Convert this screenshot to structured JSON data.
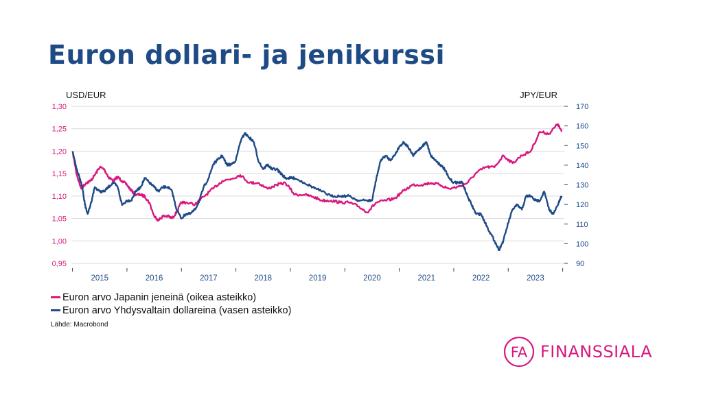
{
  "slide": {
    "title": "Euron dollari- ja jenikurssi"
  },
  "colors": {
    "title": "#1e4a86",
    "jpy": "#d8177f",
    "usd": "#1e4a86",
    "brand": "#d8177f"
  },
  "chart_data": {
    "type": "line",
    "left_axis_title": "USD/EUR",
    "right_axis_title": "JPY/EUR",
    "left_ylim": [
      0.95,
      1.3
    ],
    "left_ticks": [
      "1,30",
      "1,25",
      "1,20",
      "1,15",
      "1,10",
      "1,05",
      "1,00",
      "0,95"
    ],
    "right_ylim": [
      90,
      170
    ],
    "right_ticks": [
      "170",
      "160",
      "150",
      "140",
      "130",
      "120",
      "110",
      "100",
      "90"
    ],
    "x_range": [
      2014.9,
      2023.95
    ],
    "x_tick_labels": [
      "2015",
      "2016",
      "2017",
      "2018",
      "2019",
      "2020",
      "2021",
      "2022",
      "2023"
    ],
    "grid": true,
    "series": [
      {
        "name": "Euron arvo Japanin jeneinä (oikea asteikko)",
        "axis": "right",
        "color": "#d8177f",
        "x": [
          2014.92,
          2015.0,
          2015.08,
          2015.17,
          2015.25,
          2015.33,
          2015.42,
          2015.5,
          2015.58,
          2015.67,
          2015.75,
          2015.83,
          2015.92,
          2016.0,
          2016.08,
          2016.17,
          2016.25,
          2016.33,
          2016.42,
          2016.5,
          2016.58,
          2016.67,
          2016.75,
          2016.83,
          2016.92,
          2017.0,
          2017.17,
          2017.33,
          2017.5,
          2017.67,
          2017.83,
          2018.0,
          2018.17,
          2018.33,
          2018.5,
          2018.67,
          2018.83,
          2019.0,
          2019.17,
          2019.33,
          2019.5,
          2019.67,
          2019.83,
          2020.0,
          2020.17,
          2020.33,
          2020.5,
          2020.67,
          2020.83,
          2021.0,
          2021.17,
          2021.33,
          2021.5,
          2021.67,
          2021.83,
          2022.0,
          2022.17,
          2022.33,
          2022.5,
          2022.67,
          2022.83,
          2023.0,
          2023.17,
          2023.33,
          2023.5,
          2023.67,
          2023.83,
          2023.9
        ],
        "y": [
          147,
          135,
          128,
          131,
          132,
          135,
          139,
          138,
          134,
          132,
          134,
          132,
          130,
          127,
          125,
          125,
          124,
          121,
          114,
          112,
          114,
          114,
          113,
          116,
          121,
          121,
          120,
          124,
          128,
          132,
          133,
          135,
          131,
          131,
          128,
          130,
          131,
          125,
          125,
          124,
          122,
          122,
          121,
          121,
          119,
          116,
          121,
          122,
          123,
          127,
          130,
          130,
          131,
          130,
          128,
          129,
          131,
          136,
          139,
          139,
          145,
          141,
          145,
          147,
          157,
          156,
          161,
          157
        ]
      },
      {
        "name": "Euron arvo Yhdysvaltain dollareina (vasen asteikko)",
        "axis": "left",
        "color": "#1e4a86",
        "x": [
          2014.92,
          2015.0,
          2015.05,
          2015.1,
          2015.15,
          2015.2,
          2015.25,
          2015.33,
          2015.42,
          2015.5,
          2015.58,
          2015.67,
          2015.75,
          2015.83,
          2015.92,
          2016.0,
          2016.08,
          2016.17,
          2016.25,
          2016.33,
          2016.42,
          2016.5,
          2016.58,
          2016.67,
          2016.75,
          2016.83,
          2016.92,
          2017.0,
          2017.08,
          2017.17,
          2017.25,
          2017.33,
          2017.42,
          2017.5,
          2017.58,
          2017.67,
          2017.75,
          2017.83,
          2017.92,
          2018.0,
          2018.08,
          2018.17,
          2018.25,
          2018.33,
          2018.42,
          2018.5,
          2018.58,
          2018.67,
          2018.75,
          2018.83,
          2018.92,
          2019.0,
          2019.17,
          2019.33,
          2019.5,
          2019.67,
          2019.83,
          2020.0,
          2020.17,
          2020.33,
          2020.42,
          2020.5,
          2020.58,
          2020.67,
          2020.75,
          2020.83,
          2020.92,
          2021.0,
          2021.08,
          2021.17,
          2021.25,
          2021.33,
          2021.42,
          2021.5,
          2021.58,
          2021.67,
          2021.75,
          2021.83,
          2021.92,
          2022.0,
          2022.08,
          2022.17,
          2022.25,
          2022.33,
          2022.42,
          2022.5,
          2022.58,
          2022.67,
          2022.75,
          2022.83,
          2022.92,
          2023.0,
          2023.08,
          2023.17,
          2023.25,
          2023.33,
          2023.42,
          2023.5,
          2023.58,
          2023.67,
          2023.75,
          2023.83,
          2023.9
        ],
        "y": [
          1.2,
          1.16,
          1.14,
          1.12,
          1.08,
          1.06,
          1.08,
          1.12,
          1.11,
          1.11,
          1.12,
          1.13,
          1.12,
          1.08,
          1.09,
          1.09,
          1.11,
          1.12,
          1.14,
          1.13,
          1.12,
          1.11,
          1.12,
          1.12,
          1.11,
          1.07,
          1.05,
          1.06,
          1.06,
          1.07,
          1.09,
          1.12,
          1.14,
          1.17,
          1.18,
          1.19,
          1.17,
          1.17,
          1.18,
          1.22,
          1.24,
          1.23,
          1.22,
          1.18,
          1.16,
          1.17,
          1.16,
          1.16,
          1.15,
          1.14,
          1.14,
          1.14,
          1.13,
          1.12,
          1.11,
          1.1,
          1.1,
          1.1,
          1.09,
          1.09,
          1.09,
          1.14,
          1.18,
          1.19,
          1.18,
          1.19,
          1.21,
          1.22,
          1.21,
          1.19,
          1.2,
          1.21,
          1.22,
          1.19,
          1.18,
          1.17,
          1.16,
          1.14,
          1.13,
          1.13,
          1.13,
          1.1,
          1.08,
          1.06,
          1.06,
          1.04,
          1.02,
          1.0,
          0.98,
          1.0,
          1.04,
          1.07,
          1.08,
          1.07,
          1.1,
          1.1,
          1.09,
          1.09,
          1.11,
          1.07,
          1.06,
          1.08,
          1.1
        ]
      }
    ]
  },
  "legend": {
    "jpy_label": "Euron arvo Japanin jeneinä (oikea asteikko)",
    "usd_label": "Euron arvo Yhdysvaltain dollareina (vasen asteikko)"
  },
  "source": "Lähde: Macrobond",
  "brand": {
    "monogram": "FA",
    "name": "FINANSSIALA",
    "logo_icon": "fa-monogram-circle-icon"
  }
}
